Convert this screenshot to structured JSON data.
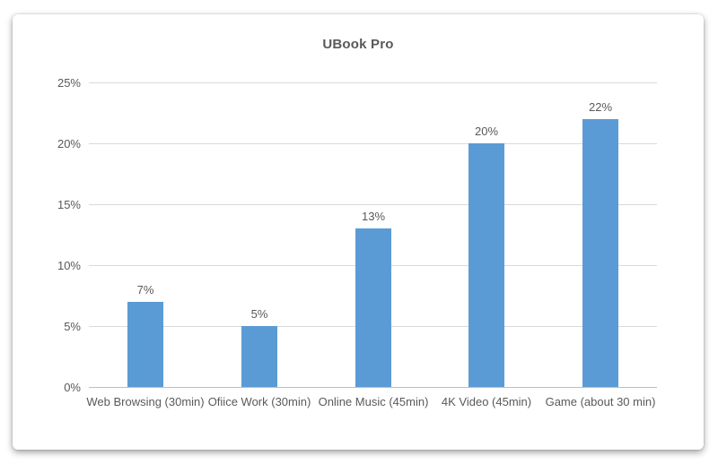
{
  "chart_data": {
    "type": "bar",
    "title": "UBook Pro",
    "categories": [
      "Web Browsing (30min)",
      "Ofiice Work (30min)",
      "Online Music (45min)",
      "4K Video (45min)",
      "Game (about 30 min)"
    ],
    "values": [
      7,
      5,
      13,
      20,
      22
    ],
    "value_labels": [
      "7%",
      "5%",
      "13%",
      "20%",
      "22%"
    ],
    "xlabel": "",
    "ylabel": "",
    "ylim": [
      0,
      25
    ],
    "y_tick_step": 5,
    "y_tick_labels": [
      "0%",
      "5%",
      "10%",
      "15%",
      "20%",
      "25%"
    ],
    "grid": true,
    "legend_position": "none",
    "colors": {
      "bar": "#5b9bd5",
      "text": "#595959",
      "gridline": "#d9d9d9",
      "axis_line": "#bfbfbf",
      "card_background": "#ffffff"
    }
  }
}
